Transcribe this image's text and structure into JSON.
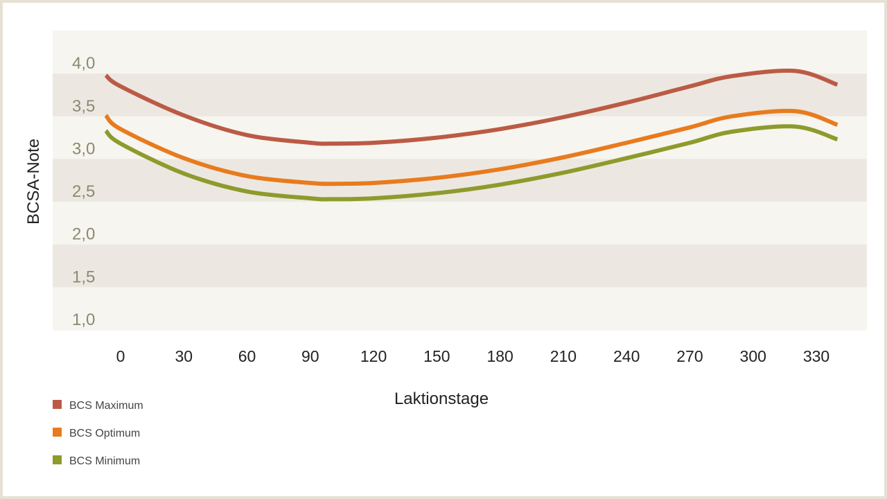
{
  "chart_data": {
    "type": "line",
    "xlabel": "Laktionstage",
    "ylabel": "BCSA-Note",
    "ylim": [
      1.0,
      4.0
    ],
    "xlim": [
      -5,
      340
    ],
    "x_ticks": [
      "0",
      "30",
      "60",
      "90",
      "120",
      "150",
      "180",
      "210",
      "240",
      "270",
      "300",
      "330"
    ],
    "y_ticks": [
      "1,0",
      "1,5",
      "2,0",
      "2,5",
      "3,0",
      "3,5",
      "4,0"
    ],
    "grid": "alternating horizontal bands",
    "legend_position": "bottom-left",
    "series": [
      {
        "name": "BCS Maximum",
        "color": "#bb5b45",
        "x": [
          -7,
          0,
          30,
          60,
          90,
          100,
          120,
          150,
          180,
          210,
          240,
          270,
          290,
          320,
          340
        ],
        "y": [
          3.85,
          3.72,
          3.38,
          3.15,
          3.06,
          3.05,
          3.06,
          3.12,
          3.22,
          3.36,
          3.53,
          3.72,
          3.84,
          3.9,
          3.74
        ]
      },
      {
        "name": "BCS Optimum",
        "color": "#e87b1e",
        "x": [
          -7,
          0,
          30,
          60,
          90,
          100,
          120,
          150,
          180,
          210,
          240,
          270,
          290,
          320,
          340
        ],
        "y": [
          3.38,
          3.22,
          2.88,
          2.67,
          2.59,
          2.58,
          2.59,
          2.65,
          2.75,
          2.89,
          3.06,
          3.24,
          3.37,
          3.43,
          3.27
        ]
      },
      {
        "name": "BCS Minimum",
        "color": "#8e9b2c",
        "x": [
          -7,
          0,
          30,
          60,
          90,
          100,
          120,
          150,
          180,
          210,
          240,
          270,
          290,
          320,
          340
        ],
        "y": [
          3.2,
          3.05,
          2.7,
          2.49,
          2.41,
          2.4,
          2.41,
          2.47,
          2.57,
          2.71,
          2.88,
          3.06,
          3.19,
          3.25,
          3.1
        ]
      }
    ]
  },
  "colors": {
    "band_light": "#f7f5ef",
    "band_dark": "#ece8e1",
    "frame": "#e6e1d3"
  }
}
